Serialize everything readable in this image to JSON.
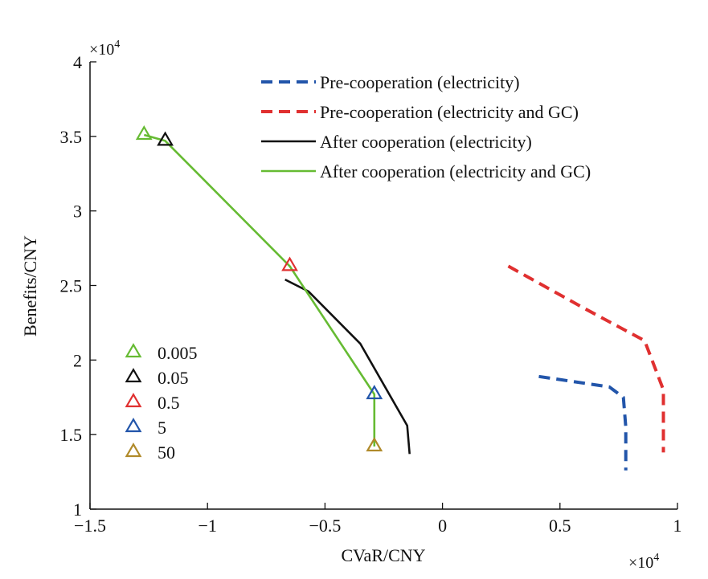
{
  "chart_data": {
    "type": "line",
    "xlabel": "CVaR/CNY",
    "ylabel": "Benefits/CNY",
    "x_multiplier": {
      "base": "×10",
      "exp": "4"
    },
    "y_multiplier": {
      "base": "×10",
      "exp": "4"
    },
    "xlim": [
      -1.5,
      1
    ],
    "ylim": [
      1,
      4
    ],
    "x_ticks": [
      -1.5,
      -1,
      -0.5,
      0,
      0.5,
      1
    ],
    "x_tick_labels": [
      "−1.5",
      "−1",
      "−0.5",
      "0",
      "0.5",
      "1"
    ],
    "y_ticks": [
      1,
      1.5,
      2,
      2.5,
      3,
      3.5,
      4
    ],
    "y_tick_labels": [
      "1",
      "1.5",
      "2",
      "2.5",
      "3",
      "3.5",
      "4"
    ],
    "grid": false,
    "legend_position": "top-right",
    "series": [
      {
        "name": "Pre-cooperation (electricity)",
        "color": "#2255aa",
        "dash": "dashed",
        "x": [
          0.41,
          0.71,
          0.77,
          0.78,
          0.78
        ],
        "y": [
          1.89,
          1.82,
          1.75,
          1.55,
          1.26
        ]
      },
      {
        "name": "Pre-cooperation (electricity and GC)",
        "color": "#e03030",
        "dash": "dashed",
        "x": [
          0.28,
          0.6,
          0.86,
          0.94,
          0.94
        ],
        "y": [
          2.63,
          2.35,
          2.13,
          1.8,
          1.38
        ]
      },
      {
        "name": "After cooperation (electricity)",
        "color": "#111111",
        "dash": "solid",
        "x": [
          -0.67,
          -0.57,
          -0.35,
          -0.15,
          -0.14
        ],
        "y": [
          2.54,
          2.46,
          2.11,
          1.56,
          1.37
        ]
      },
      {
        "name": "After cooperation (electricity and GC)",
        "color": "#66bb33",
        "dash": "solid",
        "x": [
          -1.27,
          -1.18,
          -0.65,
          -0.29,
          -0.29
        ],
        "y": [
          3.51,
          3.47,
          2.63,
          1.77,
          1.42
        ]
      }
    ],
    "markers": [
      {
        "label": "0.005",
        "color": "#66bb33",
        "x": -1.27,
        "y": 3.51
      },
      {
        "label": "0.05",
        "color": "#111111",
        "x": -1.18,
        "y": 3.47
      },
      {
        "label": "0.5",
        "color": "#e03030",
        "x": -0.65,
        "y": 2.63
      },
      {
        "label": "5",
        "color": "#2255aa",
        "x": -0.29,
        "y": 1.77
      },
      {
        "label": "50",
        "color": "#b08a2a",
        "x": -0.29,
        "y": 1.42
      }
    ]
  }
}
